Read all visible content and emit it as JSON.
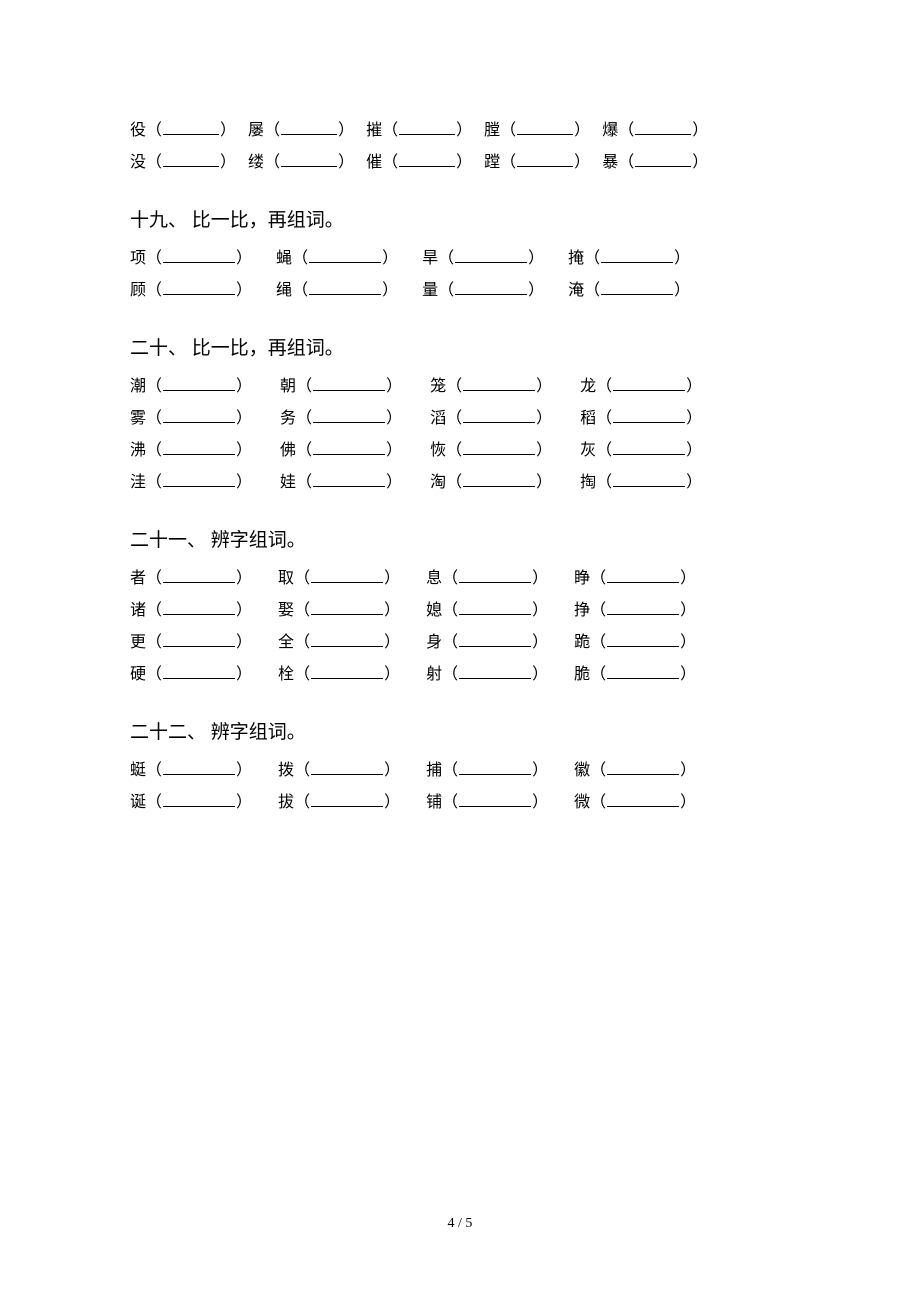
{
  "topRows": [
    {
      "blankWidth": 56,
      "gap": 12,
      "items": [
        {
          "char": "役"
        },
        {
          "char": "屡"
        },
        {
          "char": "摧"
        },
        {
          "char": "膛"
        },
        {
          "char": "爆"
        }
      ]
    },
    {
      "blankWidth": 56,
      "gap": 12,
      "items": [
        {
          "char": "没"
        },
        {
          "char": "缕"
        },
        {
          "char": "催"
        },
        {
          "char": "蹚"
        },
        {
          "char": "暴"
        }
      ]
    }
  ],
  "sections": [
    {
      "title": "十九、 比一比，再组词。",
      "rows": [
        {
          "blankWidth": 72,
          "gap": 24,
          "items": [
            {
              "char": "项"
            },
            {
              "char": "蝇"
            },
            {
              "char": "旱"
            },
            {
              "char": "掩"
            }
          ]
        },
        {
          "blankWidth": 72,
          "gap": 24,
          "items": [
            {
              "char": "顾"
            },
            {
              "char": "绳"
            },
            {
              "char": "量"
            },
            {
              "char": "淹"
            }
          ]
        }
      ]
    },
    {
      "title": "二十、 比一比，再组词。",
      "rows": [
        {
          "blankWidth": 72,
          "gap": 28,
          "items": [
            {
              "char": "潮"
            },
            {
              "char": "朝"
            },
            {
              "char": "笼"
            },
            {
              "char": "龙"
            }
          ]
        },
        {
          "blankWidth": 72,
          "gap": 28,
          "items": [
            {
              "char": "雾"
            },
            {
              "char": "务"
            },
            {
              "char": "滔"
            },
            {
              "char": "稻"
            }
          ]
        },
        {
          "blankWidth": 72,
          "gap": 28,
          "items": [
            {
              "char": "沸"
            },
            {
              "char": "佛"
            },
            {
              "char": "恢"
            },
            {
              "char": "灰"
            }
          ]
        },
        {
          "blankWidth": 72,
          "gap": 28,
          "items": [
            {
              "char": "洼"
            },
            {
              "char": "娃"
            },
            {
              "char": "淘"
            },
            {
              "char": "掏"
            }
          ]
        }
      ]
    },
    {
      "title": "二十一、 辨字组词。",
      "rows": [
        {
          "blankWidth": 72,
          "gap": 26,
          "items": [
            {
              "char": "者"
            },
            {
              "char": "取"
            },
            {
              "char": "息"
            },
            {
              "char": "睁"
            }
          ]
        },
        {
          "blankWidth": 72,
          "gap": 26,
          "items": [
            {
              "char": "诸"
            },
            {
              "char": "娶"
            },
            {
              "char": "媳"
            },
            {
              "char": "挣"
            }
          ]
        },
        {
          "blankWidth": 72,
          "gap": 26,
          "items": [
            {
              "char": "更"
            },
            {
              "char": "全"
            },
            {
              "char": "身"
            },
            {
              "char": "跪"
            }
          ]
        },
        {
          "blankWidth": 72,
          "gap": 26,
          "items": [
            {
              "char": "硬"
            },
            {
              "char": "栓"
            },
            {
              "char": "射"
            },
            {
              "char": "脆"
            }
          ]
        }
      ]
    },
    {
      "title": "二十二、 辨字组词。",
      "rows": [
        {
          "blankWidth": 72,
          "gap": 26,
          "items": [
            {
              "char": "蜓"
            },
            {
              "char": "拨"
            },
            {
              "char": "捕"
            },
            {
              "char": "徽"
            }
          ]
        },
        {
          "blankWidth": 72,
          "gap": 26,
          "items": [
            {
              "char": "诞"
            },
            {
              "char": "拔"
            },
            {
              "char": "铺"
            },
            {
              "char": "微"
            }
          ]
        }
      ]
    }
  ],
  "pageNumber": "4 / 5"
}
